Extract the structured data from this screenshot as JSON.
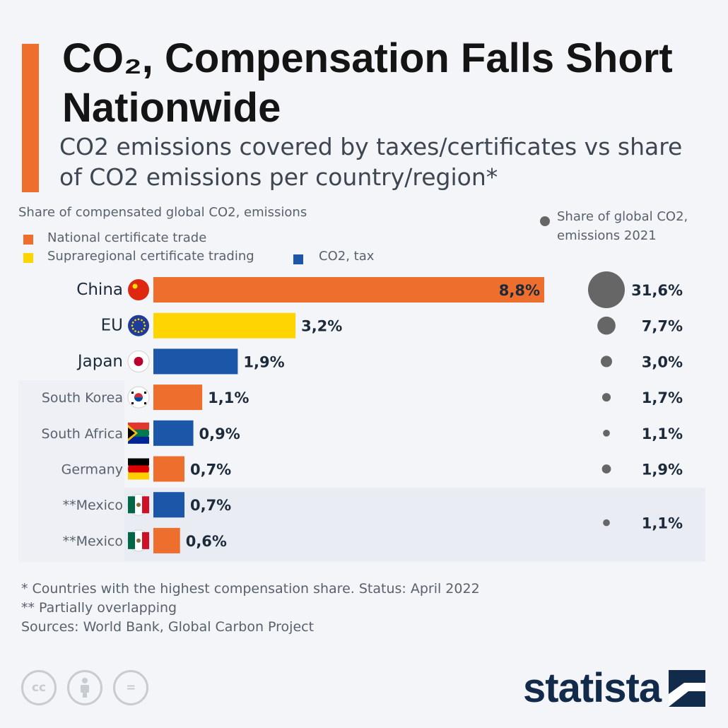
{
  "header": {
    "title": "CO₂, Compensation Falls Short Nationwide",
    "subtitle": "CO2 emissions covered by taxes/certificates vs share of CO2 emissions per country/region*"
  },
  "legend": {
    "heading": "Share of compensated global CO2, emissions",
    "items": [
      {
        "label": "National certificate trade",
        "color": "#ee6f2d"
      },
      {
        "label": "Supraregional certificate trading",
        "color": "#ffd500"
      },
      {
        "label": "CO2, tax",
        "color": "#1b56a8"
      }
    ],
    "bubble_label": "Share of global CO2, emissions 2021"
  },
  "chart_data": {
    "type": "bar",
    "orientation": "horizontal",
    "categories": [
      "China",
      "EU",
      "Japan",
      "South Korea",
      "South Africa",
      "Germany",
      "**Mexico",
      "**Mexico"
    ],
    "compensated_share": {
      "values": [
        8.8,
        3.2,
        1.9,
        1.1,
        0.9,
        0.7,
        0.7,
        0.6
      ],
      "labels": [
        "8,8%",
        "3,2%",
        "1,9%",
        "1,1%",
        "0,9%",
        "0,7%",
        "0,7%",
        "0,6%"
      ],
      "types": [
        "National certificate trade",
        "Supraregional certificate trading",
        "CO2, tax",
        "National certificate trade",
        "CO2, tax",
        "National certificate trade",
        "CO2, tax",
        "National certificate trade"
      ]
    },
    "global_emissions_share": {
      "values": [
        31.6,
        7.7,
        3.0,
        1.7,
        1.1,
        1.9,
        1.1
      ],
      "labels": [
        "31,6%",
        "7,7%",
        "3,0%",
        "1,7%",
        "1,1%",
        "1,9%",
        "1,1%"
      ],
      "note": "last value covers both Mexico rows"
    },
    "flags": [
      "china-flag",
      "eu-flag",
      "japan-flag",
      "south-korea-flag",
      "south-africa-flag",
      "germany-flag",
      "mexico-flag",
      "mexico-flag"
    ],
    "colors": {
      "National certificate trade": "#ee6f2d",
      "Supraregional certificate trading": "#ffd500",
      "CO2, tax": "#1b56a8",
      "bubble": "#666666"
    }
  },
  "footer": {
    "notes": [
      "* Countries with the highest compensation share. Status: April 2022",
      "** Partially overlapping",
      "Sources: World Bank, Global Carbon Project"
    ],
    "license_icons": [
      "cc",
      "by",
      "="
    ],
    "brand": "statista"
  }
}
